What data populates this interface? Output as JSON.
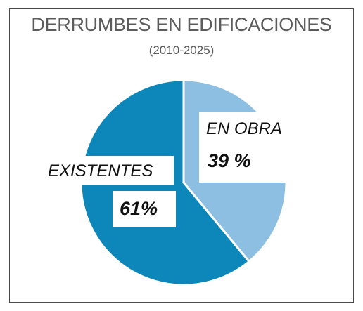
{
  "chart_data": {
    "type": "pie",
    "title": "DERRUMBES EN EDIFICACIONES",
    "subtitle": "(2010-2025)",
    "slices": [
      {
        "category": "EN OBRA",
        "value": 39,
        "label": "39 %",
        "color": "#8dbfe3"
      },
      {
        "category": "EXISTENTES",
        "value": 61,
        "label": "61%",
        "color": "#0d87b9"
      }
    ],
    "start_angle_deg": 0,
    "direction": "clockwise",
    "legend": "none"
  }
}
